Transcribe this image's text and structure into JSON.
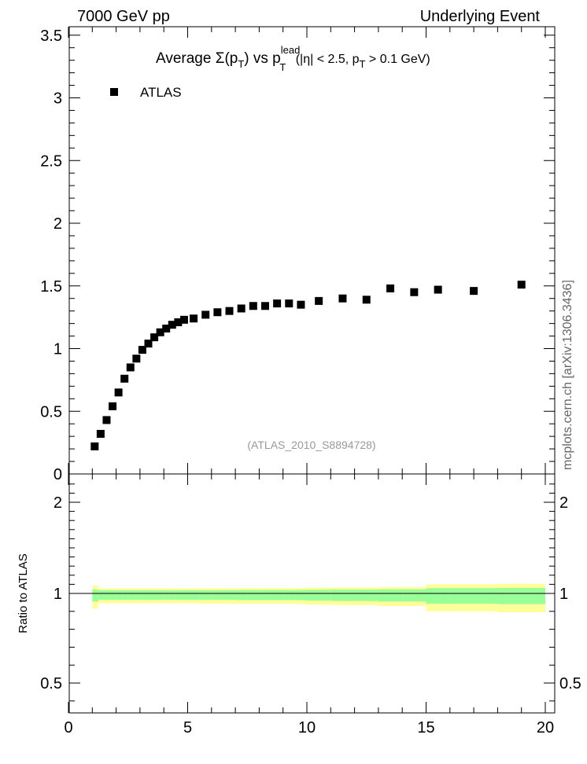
{
  "header": {
    "left": "7000 GeV pp",
    "right": "Underlying Event"
  },
  "side_label": "mcplots.cern.ch [arXiv:1306.3436]",
  "chart_data": [
    {
      "type": "scatter",
      "title": "Average Σ(pT) vs pT^lead (|η| < 2.5, pT > 0.1 GeV)",
      "title_parts": {
        "prefix": "Average Σ(p",
        "sub_t1": "T",
        "mid": ") vs p",
        "sup_lead": "lead",
        "sub_t2": "T",
        "cond1": " (|η| < 2.5, p",
        "sub_t3": "T",
        "cond2": " > 0.1 GeV)"
      },
      "analysis_label": "(ATLAS_2010_S8894728)",
      "legend": [
        "ATLAS"
      ],
      "legend_position": "top-left",
      "xlim": [
        0,
        20
      ],
      "ylim": [
        0,
        3.6
      ],
      "y_ticks": [
        "0",
        "0.5",
        "1",
        "1.5",
        "2",
        "2.5",
        "3",
        "3.5"
      ],
      "series": [
        {
          "name": "ATLAS",
          "color": "#000000",
          "marker": "square",
          "x": [
            1.1,
            1.35,
            1.6,
            1.85,
            2.1,
            2.35,
            2.6,
            2.85,
            3.1,
            3.35,
            3.6,
            3.85,
            4.1,
            4.35,
            4.6,
            4.85,
            5.25,
            5.75,
            6.25,
            6.75,
            7.25,
            7.75,
            8.25,
            8.75,
            9.25,
            9.75,
            10.5,
            11.5,
            12.5,
            13.5,
            14.5,
            15.5,
            17.0,
            19.0
          ],
          "y": [
            0.22,
            0.32,
            0.43,
            0.54,
            0.65,
            0.76,
            0.85,
            0.92,
            0.99,
            1.04,
            1.09,
            1.13,
            1.16,
            1.19,
            1.21,
            1.23,
            1.24,
            1.27,
            1.29,
            1.3,
            1.32,
            1.34,
            1.34,
            1.36,
            1.36,
            1.35,
            1.38,
            1.4,
            1.39,
            1.48,
            1.45,
            1.47,
            1.46,
            1.51
          ]
        }
      ]
    },
    {
      "type": "area",
      "ylabel": "Ratio to ATLAS",
      "xlim": [
        0,
        20
      ],
      "ylim": [
        0.35,
        2.3
      ],
      "x_ticks": [
        "0",
        "5",
        "10",
        "15",
        "20"
      ],
      "y_ticks": [
        "0.5",
        "1",
        "2"
      ],
      "reference_line": 1,
      "bands": {
        "edges": [
          1,
          1.25,
          1.5,
          1.75,
          2.0,
          2.25,
          2.5,
          2.75,
          3.0,
          3.25,
          3.5,
          3.75,
          4.0,
          4.25,
          4.5,
          4.75,
          5.0,
          5.5,
          6.0,
          6.5,
          7.0,
          7.5,
          8.0,
          8.5,
          9.0,
          9.5,
          10.0,
          11.0,
          12.0,
          13.0,
          14.0,
          15.0,
          16.0,
          18.0,
          20.0
        ],
        "stat_halfwidth": [
          0.045,
          0.035,
          0.035,
          0.035,
          0.035,
          0.035,
          0.035,
          0.035,
          0.035,
          0.035,
          0.035,
          0.035,
          0.035,
          0.035,
          0.035,
          0.035,
          0.035,
          0.035,
          0.035,
          0.035,
          0.037,
          0.037,
          0.037,
          0.037,
          0.037,
          0.038,
          0.04,
          0.042,
          0.042,
          0.045,
          0.045,
          0.058,
          0.058,
          0.06
        ],
        "total_halfwidth": [
          0.085,
          0.055,
          0.055,
          0.055,
          0.055,
          0.055,
          0.055,
          0.055,
          0.055,
          0.055,
          0.055,
          0.055,
          0.055,
          0.055,
          0.055,
          0.055,
          0.055,
          0.057,
          0.057,
          0.057,
          0.058,
          0.058,
          0.058,
          0.058,
          0.058,
          0.06,
          0.063,
          0.065,
          0.065,
          0.07,
          0.07,
          0.1,
          0.1,
          0.105
        ],
        "stat_color": "#99ff99",
        "total_color": "#ffff99"
      }
    }
  ]
}
